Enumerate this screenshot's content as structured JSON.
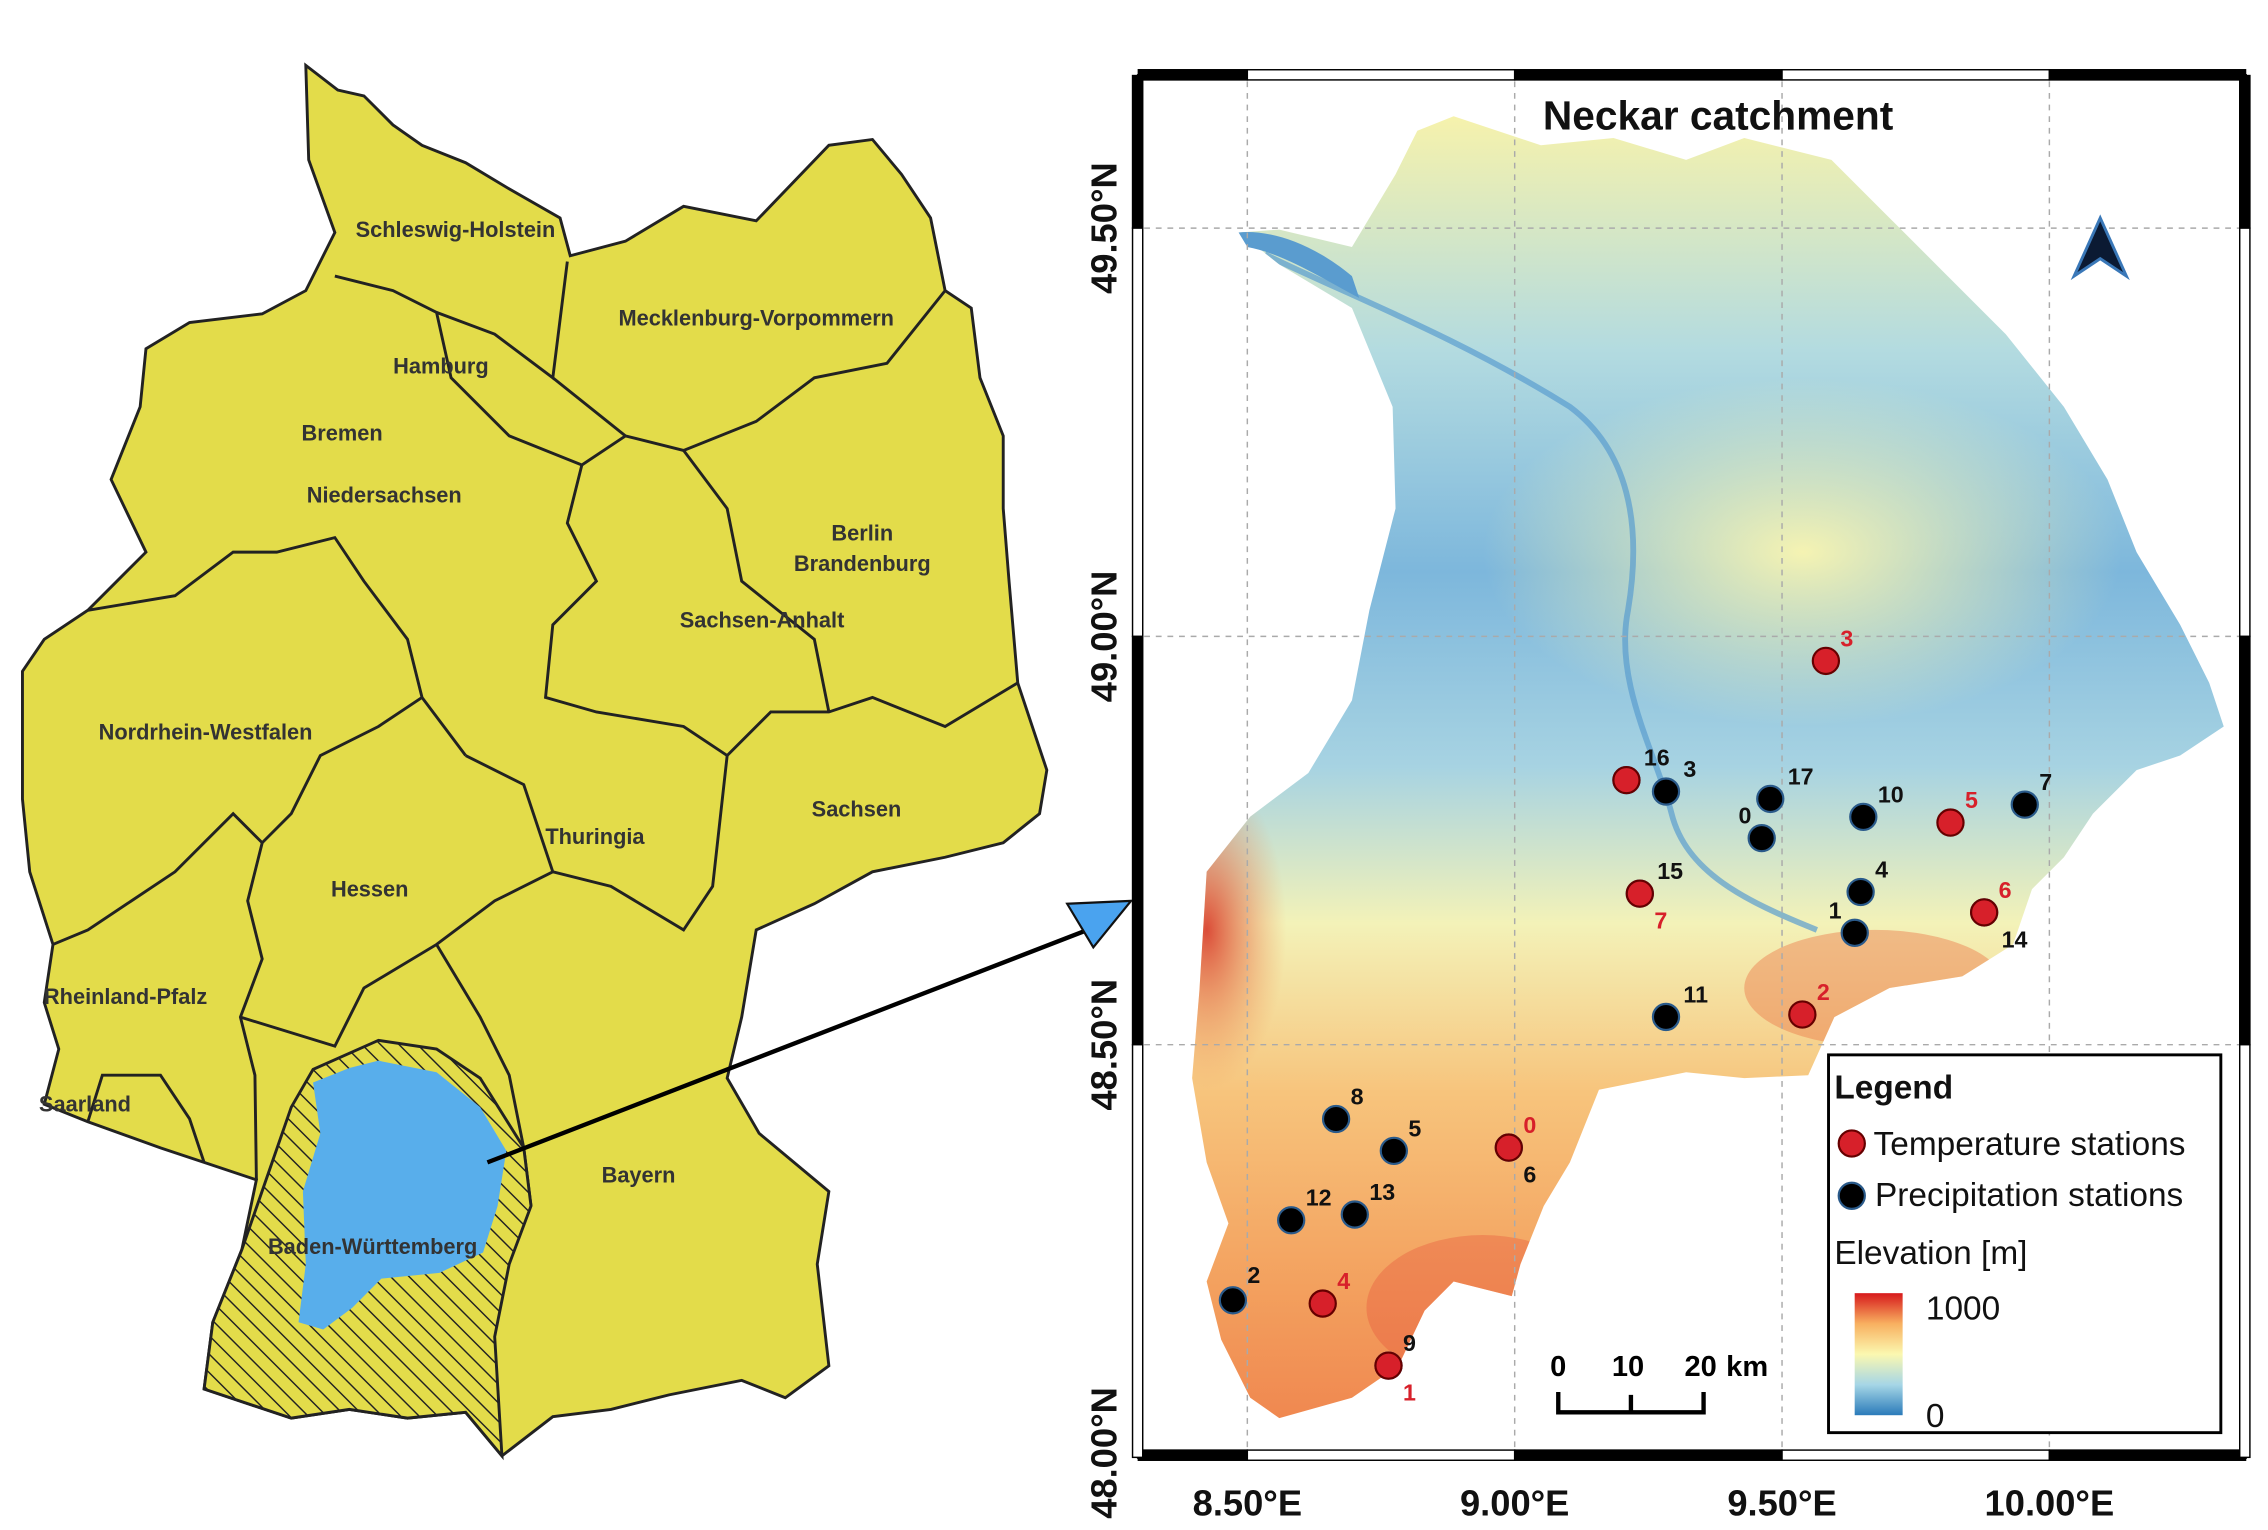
{
  "overview_map": {
    "country_fill": "#e3dc4a",
    "catchment_fill": "#58aeeb",
    "states": [
      "Schleswig-Holstein",
      "Mecklenburg-Vorpommern",
      "Hamburg",
      "Bremen",
      "Niedersachsen",
      "Berlin",
      "Brandenburg",
      "Sachsen-Anhalt",
      "Nordrhein-Westfalen",
      "Sachsen",
      "Thuringia",
      "Hessen",
      "Rheinland-Pfalz",
      "Saarland",
      "Bayern",
      "Baden-Württemberg"
    ]
  },
  "detail_map": {
    "title": "Neckar catchment",
    "x_ticks": [
      {
        "lon": 8.5,
        "label": "8.50°E"
      },
      {
        "lon": 9.0,
        "label": "9.00°E"
      },
      {
        "lon": 9.5,
        "label": "9.50°E"
      },
      {
        "lon": 10.0,
        "label": "10.00°E"
      }
    ],
    "y_ticks": [
      {
        "lat": 49.5,
        "label": "49.50°N"
      },
      {
        "lat": 49.0,
        "label": "49.00°N"
      },
      {
        "lat": 48.5,
        "label": "48.50°N"
      },
      {
        "lat": 48.0,
        "label": "48.00°N"
      }
    ],
    "north_arrow": "north-arrow-icon",
    "scale_bar": {
      "labels": [
        "0",
        "10",
        "20"
      ],
      "unit": "km"
    },
    "temperature_color": "#d7202a",
    "precipitation_color": "#000000",
    "temperature_stations": [
      {
        "label": "0",
        "lon": 8.989,
        "lat": 48.374
      },
      {
        "label": "1",
        "lon": 8.764,
        "lat": 48.107
      },
      {
        "label": "2",
        "lon": 9.538,
        "lat": 48.537
      },
      {
        "label": "3",
        "lon": 9.582,
        "lat": 48.97
      },
      {
        "label": "4",
        "lon": 8.641,
        "lat": 48.183
      },
      {
        "label": "5",
        "lon": 9.815,
        "lat": 48.772
      },
      {
        "label": "6",
        "lon": 9.878,
        "lat": 48.662
      },
      {
        "label": "7",
        "lon": 9.234,
        "lat": 48.685
      },
      {
        "label": "",
        "lon": 9.209,
        "lat": 48.824
      }
    ],
    "precipitation_stations": [
      {
        "label": "0",
        "lon": 9.462,
        "lat": 48.753
      },
      {
        "label": "1",
        "lon": 9.636,
        "lat": 48.637
      },
      {
        "label": "2",
        "lon": 8.473,
        "lat": 48.187
      },
      {
        "label": "3",
        "lon": 9.283,
        "lat": 48.81
      },
      {
        "label": "4",
        "lon": 9.647,
        "lat": 48.687
      },
      {
        "label": "5",
        "lon": 8.774,
        "lat": 48.37
      },
      {
        "label": "6",
        "lon": 8.989,
        "lat": 48.374
      },
      {
        "label": "7",
        "lon": 9.954,
        "lat": 48.794
      },
      {
        "label": "8",
        "lon": 8.666,
        "lat": 48.409
      },
      {
        "label": "9",
        "lon": 8.764,
        "lat": 48.107
      },
      {
        "label": "10",
        "lon": 9.652,
        "lat": 48.779
      },
      {
        "label": "11",
        "lon": 9.283,
        "lat": 48.534
      },
      {
        "label": "12",
        "lon": 8.582,
        "lat": 48.285
      },
      {
        "label": "13",
        "lon": 8.701,
        "lat": 48.292
      },
      {
        "label": "14",
        "lon": 9.878,
        "lat": 48.662
      },
      {
        "label": "15",
        "lon": 9.234,
        "lat": 48.685
      },
      {
        "label": "16",
        "lon": 9.209,
        "lat": 48.824
      },
      {
        "label": "17",
        "lon": 9.478,
        "lat": 48.801
      }
    ],
    "legend": {
      "title": "Legend",
      "temperature": "Temperature stations",
      "precipitation": "Precipitation stations",
      "elevation_title": "Elevation [m]",
      "elevation_max": "1000",
      "elevation_min": "0",
      "colormap": [
        "#2b7bba",
        "#a6d6e6",
        "#fbf8b0",
        "#f8b060",
        "#d7191c"
      ]
    }
  }
}
